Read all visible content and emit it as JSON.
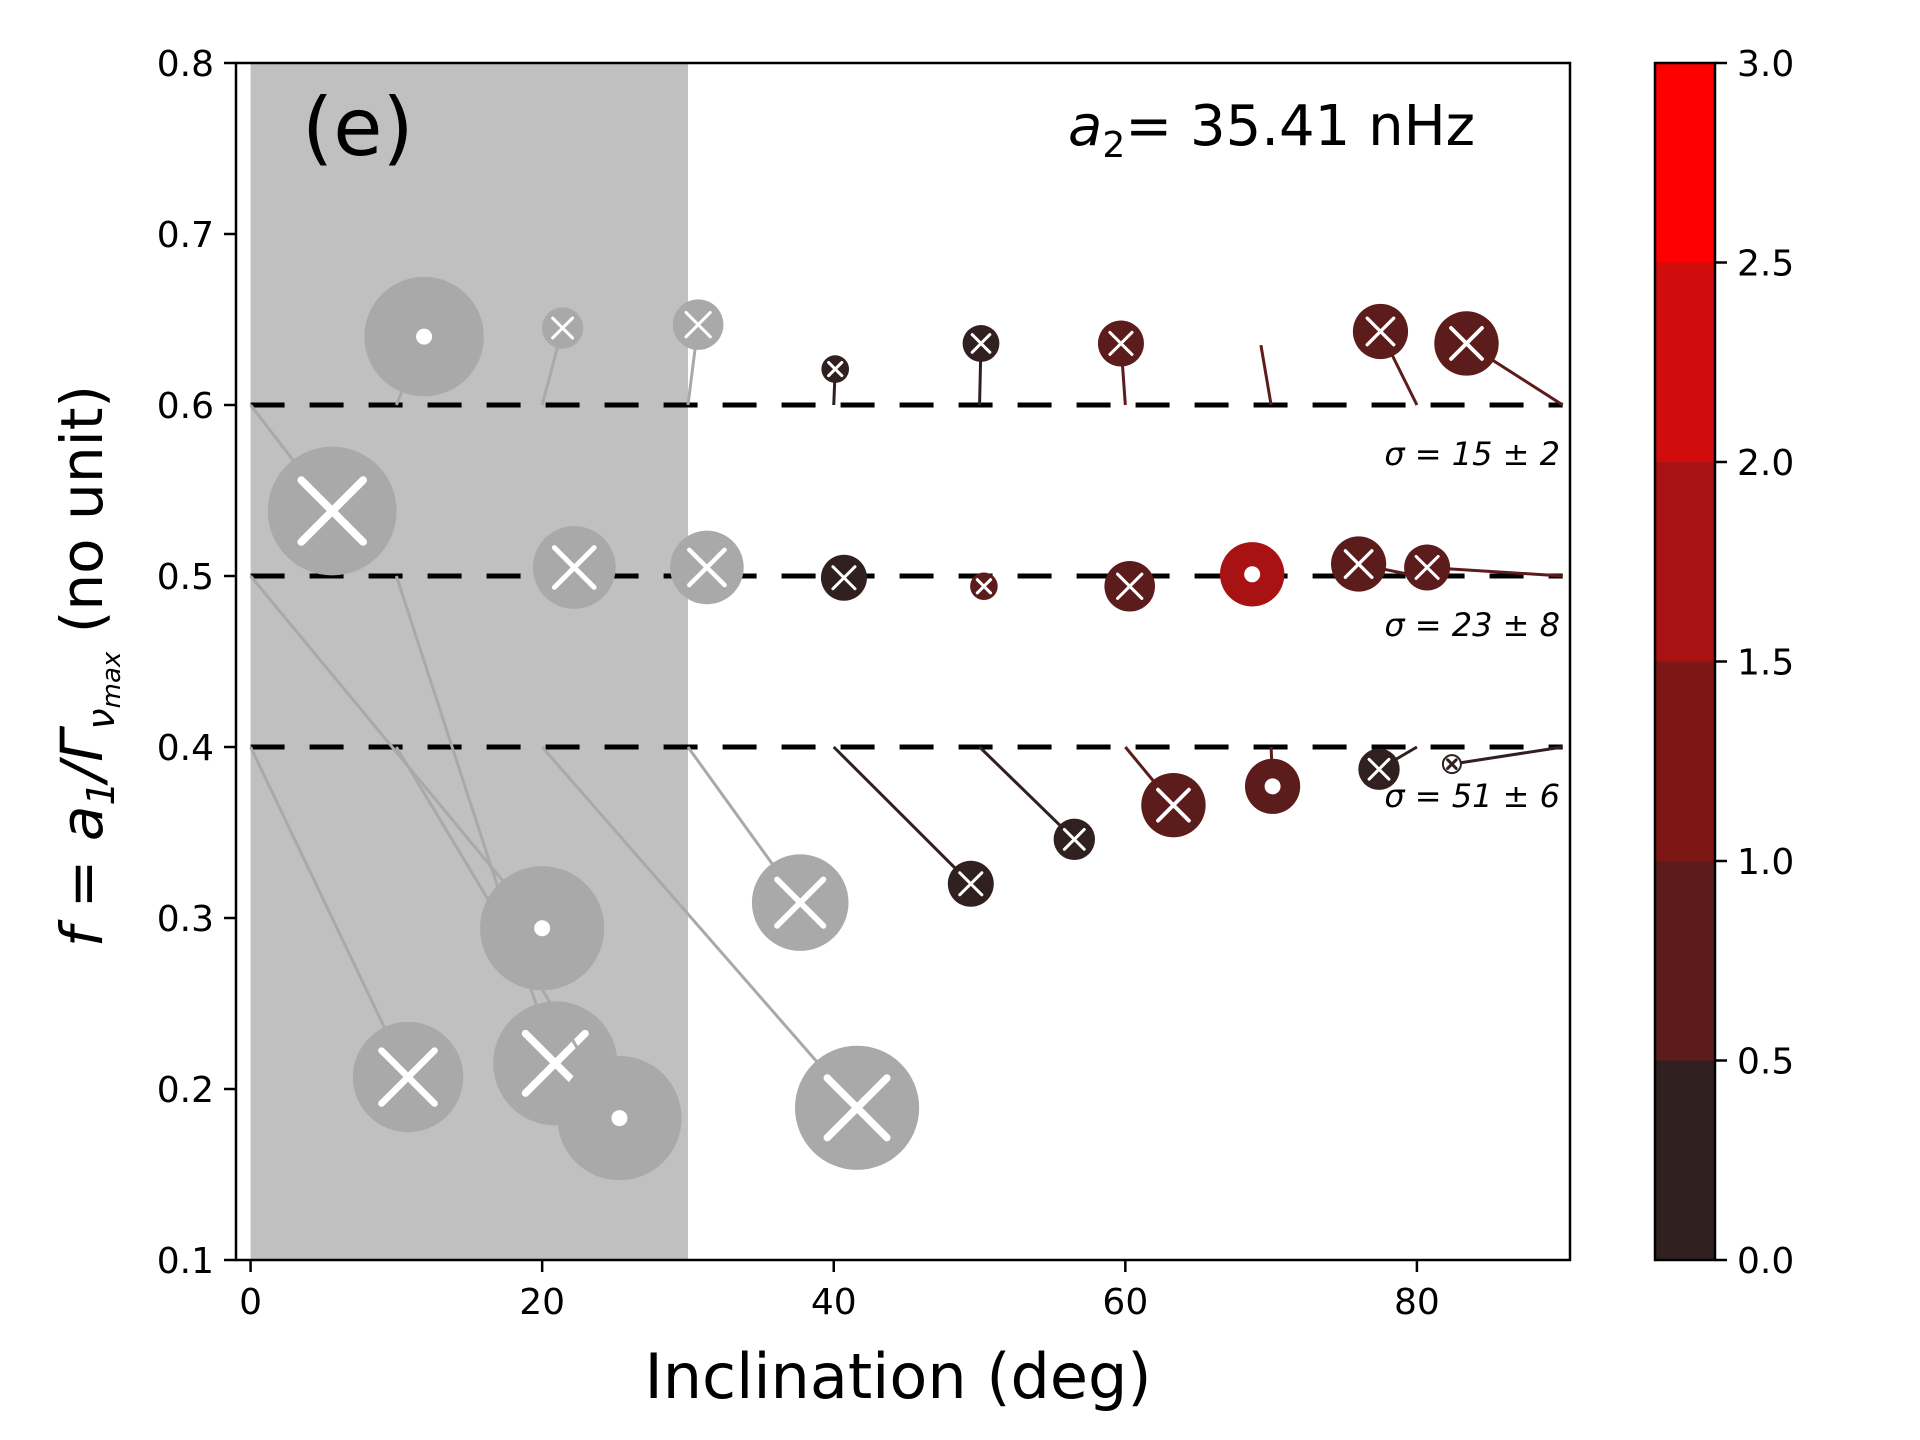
{
  "chart_data": {
    "type": "scatter",
    "panel_label": "(e)",
    "annotation": {
      "symbol": "a",
      "subscript": "2",
      "text": "= 35.41 nHz"
    },
    "xlabel": "Inclination (deg)",
    "ylabel": {
      "f": "f",
      "eq": " = a",
      "sub1": "1",
      "slash": "/Γ",
      "sub2": "ν",
      "sub3": "max",
      "tail": "  (no unit)"
    },
    "xlim": [
      -1,
      90.5
    ],
    "ylim": [
      0.1,
      0.8
    ],
    "xticks": [
      0,
      20,
      40,
      60,
      80
    ],
    "xtick_labels": [
      "0",
      "20",
      "40",
      "60",
      "80"
    ],
    "yticks": [
      0.1,
      0.2,
      0.3,
      0.4,
      0.5,
      0.6,
      0.7,
      0.8
    ],
    "ytick_labels": [
      "0.1",
      "0.2",
      "0.3",
      "0.4",
      "0.5",
      "0.6",
      "0.7",
      "0.8"
    ],
    "shaded_region": {
      "x": [
        0,
        30
      ],
      "color": "#c0c0c0"
    },
    "reference_lines": [
      {
        "y": 0.6,
        "label": "σ = 15 ± 2"
      },
      {
        "y": 0.5,
        "label": "σ = 23 ± 8"
      },
      {
        "y": 0.4,
        "label": "σ = 51 ± 6"
      }
    ],
    "colorbar": {
      "ticks": [
        0.0,
        0.5,
        1.0,
        1.5,
        2.0,
        2.5,
        3.0
      ],
      "tick_labels": [
        "0.0",
        "0.5",
        "1.0",
        "1.5",
        "2.0",
        "2.5",
        "3.0"
      ],
      "colors": [
        "#302020",
        "#5c1c1c",
        "#7e1616",
        "#a81212",
        "#d00c0c",
        "#ff0000"
      ]
    },
    "gray_color": "#a9a9a9",
    "series": [
      {
        "true_x": 10,
        "true_y": 0.6,
        "x": 11.9,
        "y": 0.64,
        "size": 1.3,
        "marker": "dot",
        "color": "gray"
      },
      {
        "true_x": 20,
        "true_y": 0.6,
        "x": 21.4,
        "y": 0.645,
        "size": 0.45,
        "marker": "x",
        "color": "gray"
      },
      {
        "true_x": 30,
        "true_y": 0.6,
        "x": 30.7,
        "y": 0.647,
        "size": 0.55,
        "marker": "x",
        "color": "gray"
      },
      {
        "true_x": 40,
        "true_y": 0.6,
        "x": 40.1,
        "y": 0.621,
        "size": 0.3,
        "marker": "x",
        "color": 0.2
      },
      {
        "true_x": 50,
        "true_y": 0.6,
        "x": 50.1,
        "y": 0.636,
        "size": 0.4,
        "marker": "x",
        "color": 0.3
      },
      {
        "true_x": 60,
        "true_y": 0.6,
        "x": 59.7,
        "y": 0.636,
        "size": 0.5,
        "marker": "x",
        "color": 0.8
      },
      {
        "true_x": 70,
        "true_y": 0.6,
        "x": 69.3,
        "y": 0.635,
        "size": 0.0,
        "marker": "none",
        "color": 0.5
      },
      {
        "true_x": 80,
        "true_y": 0.6,
        "x": 77.5,
        "y": 0.643,
        "size": 0.6,
        "marker": "x",
        "color": 0.8
      },
      {
        "true_x": 90,
        "true_y": 0.6,
        "x": 83.4,
        "y": 0.636,
        "size": 0.7,
        "marker": "x",
        "color": 0.8
      },
      {
        "true_x": 0,
        "true_y": 0.6,
        "x": 5.6,
        "y": 0.538,
        "size": 1.4,
        "marker": "x",
        "color": "gray"
      },
      {
        "true_x": 20,
        "true_y": 0.5,
        "x": 22.2,
        "y": 0.505,
        "size": 0.9,
        "marker": "x",
        "color": "gray"
      },
      {
        "true_x": 30,
        "true_y": 0.5,
        "x": 31.3,
        "y": 0.505,
        "size": 0.8,
        "marker": "x",
        "color": "gray"
      },
      {
        "true_x": 40,
        "true_y": 0.5,
        "x": 40.7,
        "y": 0.499,
        "size": 0.5,
        "marker": "x",
        "color": 0.2
      },
      {
        "true_x": 50,
        "true_y": 0.5,
        "x": 50.3,
        "y": 0.494,
        "size": 0.3,
        "marker": "x",
        "color": 0.5
      },
      {
        "true_x": 60,
        "true_y": 0.5,
        "x": 60.3,
        "y": 0.494,
        "size": 0.55,
        "marker": "x",
        "color": 0.8
      },
      {
        "true_x": 70,
        "true_y": 0.5,
        "x": 68.7,
        "y": 0.501,
        "size": 0.7,
        "marker": "dot",
        "color": 1.7
      },
      {
        "true_x": 80,
        "true_y": 0.5,
        "x": 76.0,
        "y": 0.507,
        "size": 0.6,
        "marker": "x",
        "color": 0.9
      },
      {
        "true_x": 90,
        "true_y": 0.5,
        "x": 80.7,
        "y": 0.505,
        "size": 0.5,
        "marker": "x",
        "color": 0.8
      },
      {
        "true_x": 0,
        "true_y": 0.5,
        "x": 20.0,
        "y": 0.294,
        "size": 1.35,
        "marker": "dot",
        "color": "gray"
      },
      {
        "true_x": 10,
        "true_y": 0.5,
        "x": 20.9,
        "y": 0.215,
        "size": 1.35,
        "marker": "x",
        "color": "gray"
      },
      {
        "true_x": 0,
        "true_y": 0.4,
        "x": 10.8,
        "y": 0.207,
        "size": 1.2,
        "marker": "x",
        "color": "gray"
      },
      {
        "true_x": 10,
        "true_y": 0.4,
        "x": 25.3,
        "y": 0.183,
        "size": 1.35,
        "marker": "dot",
        "color": "gray"
      },
      {
        "true_x": 20,
        "true_y": 0.4,
        "x": 41.6,
        "y": 0.189,
        "size": 1.35,
        "marker": "x",
        "color": "gray"
      },
      {
        "true_x": 30,
        "true_y": 0.4,
        "x": 37.7,
        "y": 0.309,
        "size": 1.05,
        "marker": "x",
        "color": "gray"
      },
      {
        "true_x": 40,
        "true_y": 0.4,
        "x": 49.4,
        "y": 0.32,
        "size": 0.5,
        "marker": "x",
        "color": 0.3
      },
      {
        "true_x": 50,
        "true_y": 0.4,
        "x": 56.5,
        "y": 0.346,
        "size": 0.45,
        "marker": "x",
        "color": 0.3
      },
      {
        "true_x": 60,
        "true_y": 0.4,
        "x": 63.3,
        "y": 0.366,
        "size": 0.7,
        "marker": "x",
        "color": 0.9
      },
      {
        "true_x": 70,
        "true_y": 0.4,
        "x": 70.1,
        "y": 0.377,
        "size": 0.6,
        "marker": "dot",
        "color": 0.9
      },
      {
        "true_x": 80,
        "true_y": 0.4,
        "x": 77.4,
        "y": 0.387,
        "size": 0.45,
        "marker": "x",
        "color": 0.3
      },
      {
        "true_x": 90,
        "true_y": 0.4,
        "x": 82.4,
        "y": 0.39,
        "size": 0.15,
        "marker": "x",
        "color": "white"
      }
    ]
  }
}
